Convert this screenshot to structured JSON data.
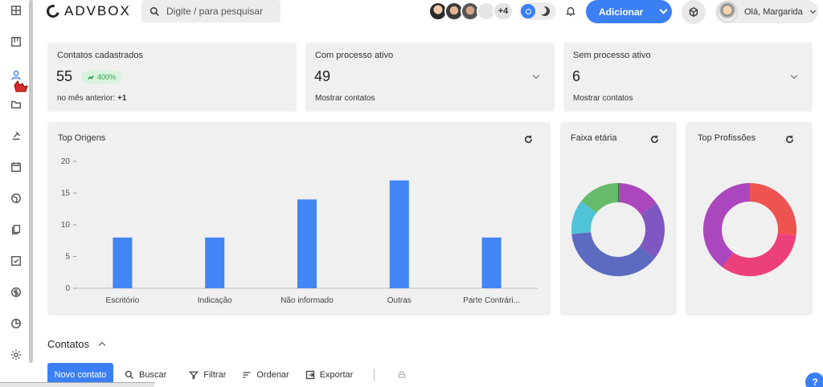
{
  "header": {
    "logo_text": "ADVBOX",
    "search_placeholder": "Digite / para pesquisar",
    "avatars_more": "+4",
    "add_button_label": "Adicionar",
    "greeting": "Olá, Margarida"
  },
  "stats": {
    "contatos": {
      "title": "Contatos cadastrados",
      "value": "55",
      "badge": "400%",
      "sub_label": "no mês anterior:",
      "sub_value": "+1"
    },
    "com_processo": {
      "title": "Com processo ativo",
      "value": "49",
      "sub_label": "Mostrar contatos"
    },
    "sem_processo": {
      "title": "Sem processo ativo",
      "value": "6",
      "sub_label": "Mostrar contatos"
    }
  },
  "panels": {
    "origens_title": "Top Origens",
    "faixa_title": "Faixa etária",
    "profissoes_title": "Top Profissões"
  },
  "chart_data": [
    {
      "type": "bar",
      "title": "Top Origens",
      "categories": [
        "Escritório",
        "Indicação",
        "Não informado",
        "Outras",
        "Parte Contrári..."
      ],
      "values": [
        8,
        8,
        14,
        17,
        8
      ],
      "ylim": [
        0,
        20
      ],
      "yticks": [
        0,
        5,
        10,
        15,
        20
      ],
      "color": "#4285f4",
      "grid": false
    },
    {
      "type": "pie",
      "title": "Faixa etária",
      "donut": true,
      "slices": [
        {
          "value": 0.5,
          "color": "#2e7d32"
        },
        {
          "value": 15,
          "color": "#ab47bc"
        },
        {
          "value": 20,
          "color": "#7e57c2"
        },
        {
          "value": 38,
          "color": "#5c6bc0"
        },
        {
          "value": 12,
          "color": "#4fc3d8"
        },
        {
          "value": 14.5,
          "color": "#66bb6a"
        }
      ]
    },
    {
      "type": "pie",
      "title": "Top Profissões",
      "donut": true,
      "slices": [
        {
          "value": 27,
          "color": "#ef5350"
        },
        {
          "value": 33,
          "color": "#ec407a"
        },
        {
          "value": 40,
          "color": "#ab47bc"
        }
      ]
    }
  ],
  "contatos_section": {
    "title": "Contatos",
    "new_button": "Novo contato",
    "search": "Buscar",
    "filter": "Filtrar",
    "sort": "Ordenar",
    "export": "Exportar"
  }
}
